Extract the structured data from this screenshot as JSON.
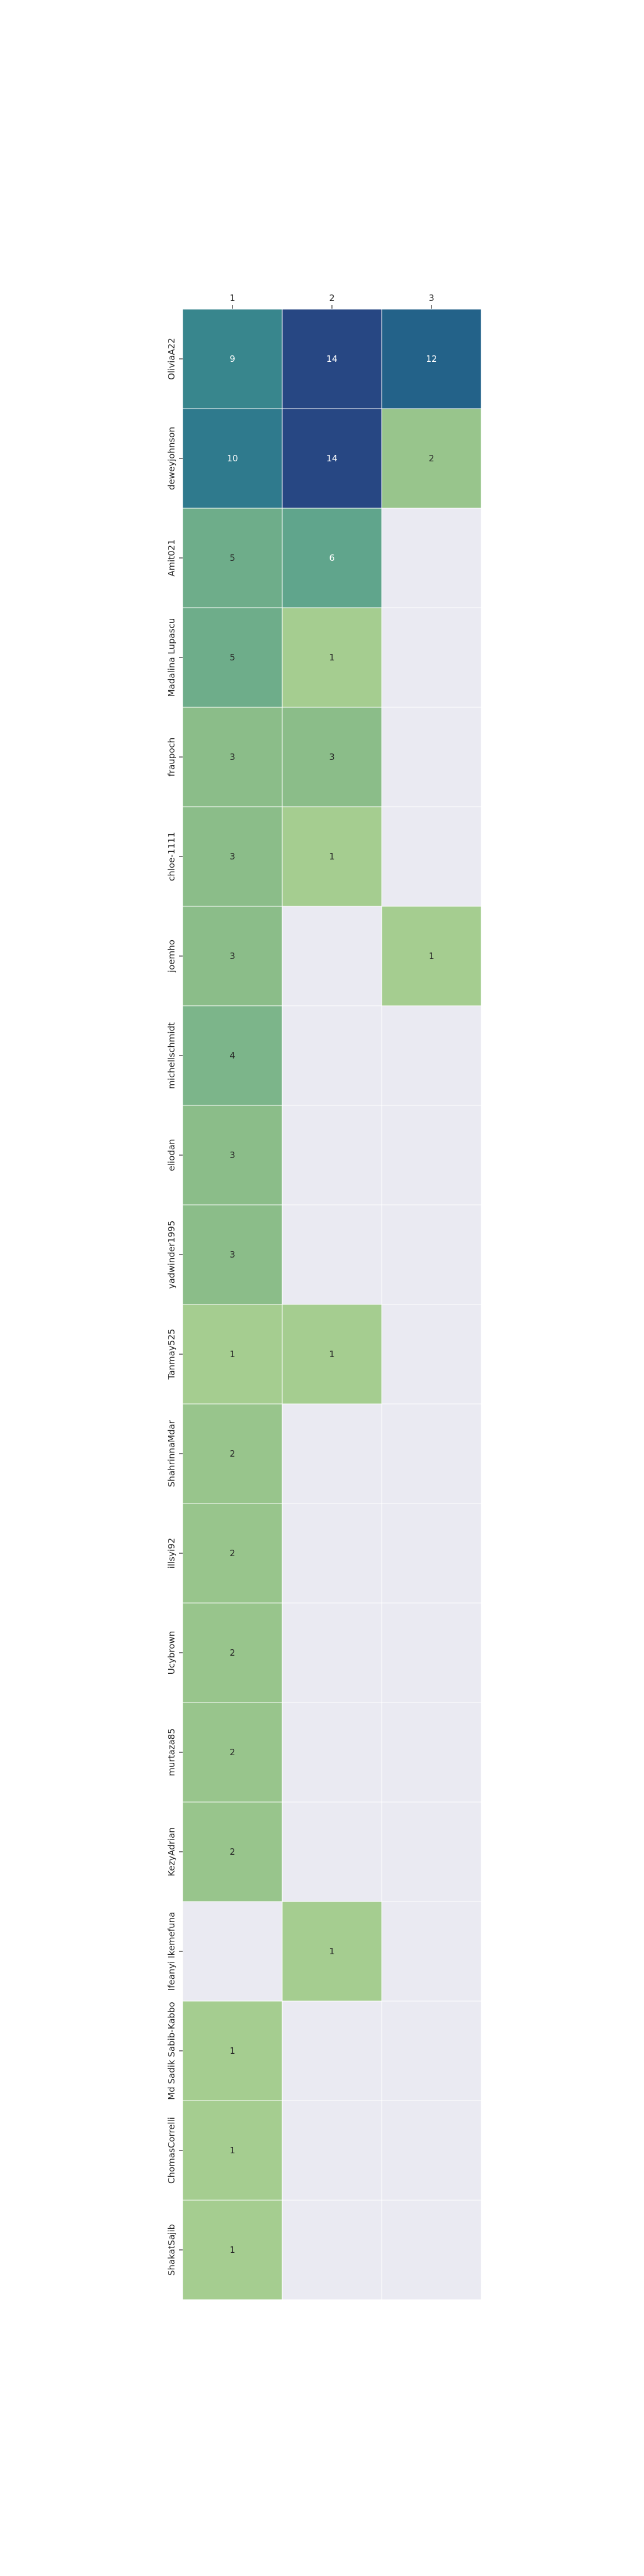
{
  "chart_data": {
    "type": "heatmap",
    "title": "",
    "xlabel": "",
    "ylabel": "",
    "columns": [
      "1",
      "2",
      "3"
    ],
    "rows": [
      "OliviaA22",
      "deweyjohnson",
      "Amit021",
      "Madalina Lupascu",
      "fraupoch",
      "chloe-1111",
      "joemho",
      "michellschmidt",
      "eliodan",
      "yadwinder1995",
      "Tanmay525",
      "ShahrinnaMdar",
      "illsyi92",
      "Ucybrown",
      "murtaza85",
      "KezyAdrian",
      "Ifeanyi Ikemefuna",
      "Md Sadik Sabib-Kabbo",
      "ChomasCorrelli",
      "ShakatSajib"
    ],
    "values": [
      [
        9,
        14,
        12
      ],
      [
        10,
        14,
        2
      ],
      [
        5,
        6,
        null
      ],
      [
        5,
        1,
        null
      ],
      [
        3,
        3,
        null
      ],
      [
        3,
        1,
        null
      ],
      [
        3,
        null,
        1
      ],
      [
        4,
        null,
        null
      ],
      [
        3,
        null,
        null
      ],
      [
        3,
        null,
        null
      ],
      [
        1,
        1,
        null
      ],
      [
        2,
        null,
        null
      ],
      [
        2,
        null,
        null
      ],
      [
        2,
        null,
        null
      ],
      [
        2,
        null,
        null
      ],
      [
        2,
        null,
        null
      ],
      [
        null,
        1,
        null
      ],
      [
        1,
        null,
        null
      ],
      [
        1,
        null,
        null
      ],
      [
        1,
        null,
        null
      ]
    ],
    "color_range": [
      1,
      14
    ],
    "colormap": "crest",
    "missing_color": "#eaeaf2",
    "grid_color": "#ffffff"
  }
}
